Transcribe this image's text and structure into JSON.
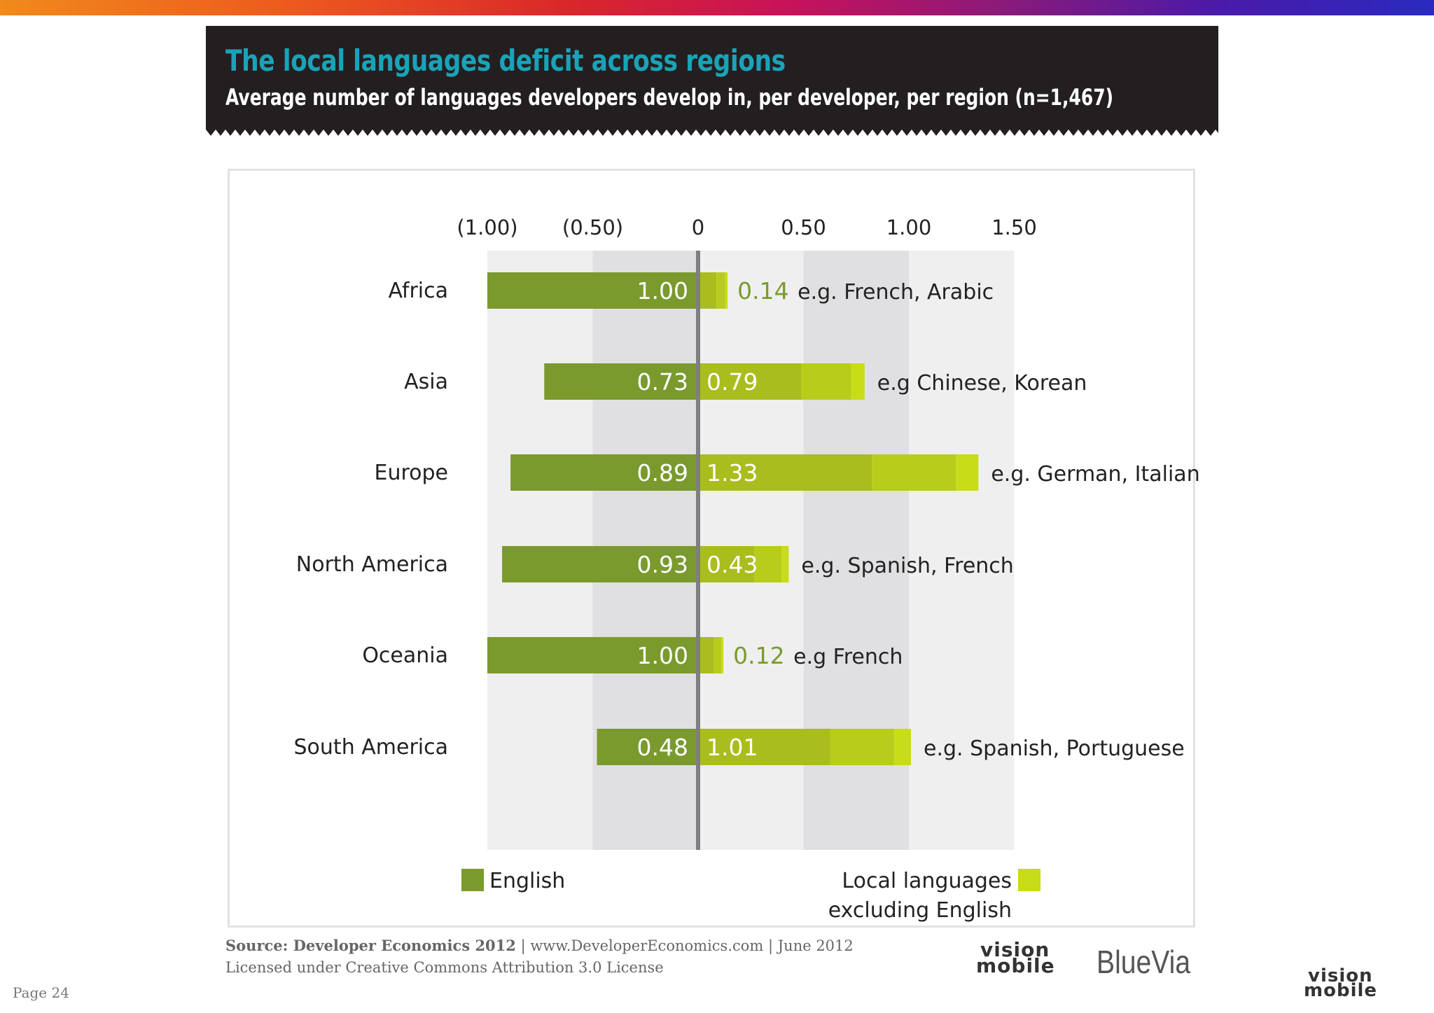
{
  "header": {
    "title": "The local languages deficit across regions",
    "subtitle": "Average number of languages developers develop in, per developer, per region (n=1,467)"
  },
  "chart_data": {
    "type": "bar",
    "orientation": "horizontal-diverging",
    "axis_ticks": [
      "(1.00)",
      "(0.50)",
      "0",
      "0.50",
      "1.00",
      "1.50"
    ],
    "axis_tick_values": [
      -1.0,
      -0.5,
      0,
      0.5,
      1.0,
      1.5
    ],
    "xlim": [
      -1.0,
      1.5
    ],
    "categories": [
      "Africa",
      "Asia",
      "Europe",
      "North America",
      "Oceania",
      "South America"
    ],
    "series": [
      {
        "name": "English",
        "values": [
          1.0,
          0.73,
          0.89,
          0.93,
          1.0,
          0.48
        ],
        "labels": [
          "1.00",
          "0.73",
          "0.89",
          "0.93",
          "1.00",
          "0.48"
        ],
        "color": "#7a9a2e"
      },
      {
        "name": "Local languages excluding English",
        "values": [
          0.14,
          0.79,
          1.33,
          0.43,
          0.12,
          1.01
        ],
        "labels": [
          "0.14",
          "0.79",
          "1.33",
          "0.43",
          "0.12",
          "1.01"
        ],
        "color": "#c4d81a"
      }
    ],
    "examples": [
      "e.g. French, Arabic",
      "e.g Chinese, Korean",
      "e.g. German, Italian",
      "e.g. Spanish, French",
      "e.g French",
      "e.g. Spanish, Portuguese"
    ],
    "legend": {
      "english": "English",
      "local_line1": "Local languages",
      "local_line2": "excluding English"
    },
    "colors": {
      "english": "#7a9a2e",
      "local_dark": "#a9bd1e",
      "local_mid": "#b8cc1c",
      "local_light": "#c8dc18",
      "band_light": "#efefef",
      "band_dark": "#e0e0e2",
      "zero_line": "#7f7f7f"
    }
  },
  "footer": {
    "source_bold": "Source: Developer Economics 2012",
    "source_rest": " | www.DeveloperEconomics.com | June 2012",
    "license": "Licensed under Creative Commons Attribution 3.0 License",
    "page": "Page 24",
    "logo_vision": "vision",
    "logo_mobile": "mobile",
    "logo_bluevia": "BlueVia"
  }
}
